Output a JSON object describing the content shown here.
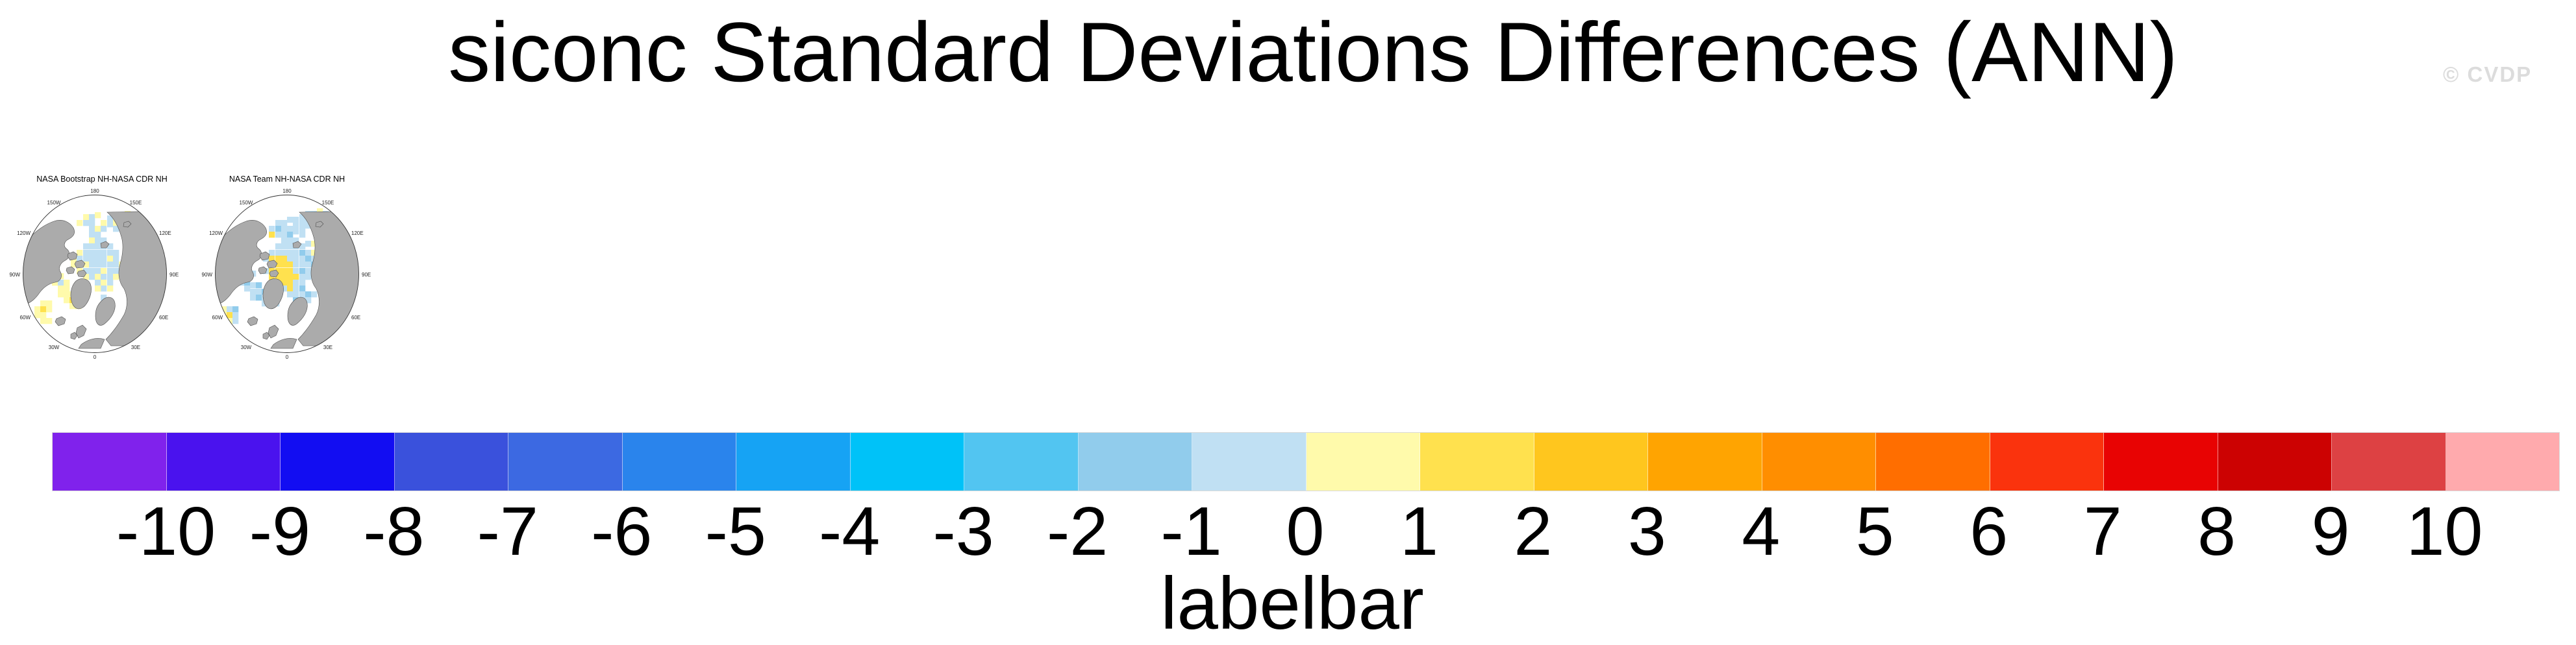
{
  "figure": {
    "title": "siconc Standard Deviations Differences (ANN)",
    "watermark": "© CVDP",
    "background": "#ffffff"
  },
  "panels": [
    {
      "title": "NASA Bootstrap NH-NASA CDR NH",
      "cells": [
        [
          123,
          45,
          11
        ],
        [
          132,
          45,
          10
        ],
        [
          141,
          42,
          11
        ],
        [
          160,
          47,
          10
        ],
        [
          169,
          45,
          11
        ],
        [
          178,
          42,
          10
        ],
        [
          187,
          40,
          11
        ],
        [
          113,
          54,
          11
        ],
        [
          123,
          54,
          10
        ],
        [
          132,
          54,
          10
        ],
        [
          150,
          54,
          11
        ],
        [
          160,
          56,
          10
        ],
        [
          169,
          54,
          11
        ],
        [
          187,
          49,
          10
        ],
        [
          196,
          45,
          11
        ],
        [
          132,
          63,
          10
        ],
        [
          141,
          63,
          11
        ],
        [
          150,
          63,
          10
        ],
        [
          169,
          63,
          10
        ],
        [
          178,
          60,
          11
        ],
        [
          187,
          58,
          11
        ],
        [
          196,
          58,
          10
        ],
        [
          196,
          67,
          11
        ],
        [
          132,
          72,
          10
        ],
        [
          141,
          72,
          10
        ],
        [
          132,
          81,
          11
        ],
        [
          141,
          81,
          10
        ],
        [
          150,
          81,
          10
        ],
        [
          123,
          90,
          10
        ],
        [
          132,
          90,
          10
        ],
        [
          141,
          90,
          10
        ],
        [
          150,
          90,
          10
        ],
        [
          160,
          90,
          10
        ],
        [
          113,
          100,
          11
        ],
        [
          123,
          100,
          10
        ],
        [
          132,
          100,
          10
        ],
        [
          141,
          100,
          10
        ],
        [
          150,
          100,
          10
        ],
        [
          160,
          100,
          10
        ],
        [
          169,
          100,
          10
        ],
        [
          104,
          109,
          11
        ],
        [
          113,
          109,
          10
        ],
        [
          123,
          109,
          10
        ],
        [
          132,
          109,
          10
        ],
        [
          141,
          109,
          10
        ],
        [
          150,
          109,
          10
        ],
        [
          160,
          109,
          11
        ],
        [
          169,
          109,
          10
        ],
        [
          104,
          118,
          11
        ],
        [
          113,
          118,
          10
        ],
        [
          123,
          118,
          11
        ],
        [
          132,
          118,
          10
        ],
        [
          141,
          118,
          10
        ],
        [
          150,
          118,
          10
        ],
        [
          160,
          118,
          10
        ],
        [
          169,
          118,
          10
        ],
        [
          178,
          118,
          11
        ],
        [
          113,
          128,
          11
        ],
        [
          123,
          128,
          10
        ],
        [
          132,
          128,
          10
        ],
        [
          141,
          128,
          10
        ],
        [
          150,
          128,
          11
        ],
        [
          160,
          128,
          10
        ],
        [
          169,
          128,
          10
        ],
        [
          123,
          137,
          11
        ],
        [
          132,
          137,
          10
        ],
        [
          141,
          137,
          11
        ],
        [
          150,
          137,
          10
        ],
        [
          160,
          137,
          10
        ],
        [
          169,
          137,
          11
        ],
        [
          141,
          146,
          10
        ],
        [
          150,
          146,
          11
        ],
        [
          160,
          146,
          10
        ],
        [
          150,
          155,
          10
        ],
        [
          160,
          155,
          11
        ],
        [
          141,
          155,
          11
        ],
        [
          150,
          169,
          10
        ],
        [
          66,
          127,
          11
        ],
        [
          75,
          127,
          11
        ],
        [
          66,
          136,
          11
        ],
        [
          75,
          136,
          12
        ],
        [
          84,
          136,
          11
        ],
        [
          75,
          146,
          11
        ],
        [
          84,
          146,
          10
        ],
        [
          93,
          146,
          11
        ],
        [
          84,
          155,
          11
        ],
        [
          93,
          155,
          11
        ],
        [
          84,
          164,
          11
        ],
        [
          93,
          164,
          11
        ],
        [
          102,
          164,
          11
        ],
        [
          93,
          173,
          11
        ],
        [
          102,
          173,
          12
        ],
        [
          102,
          182,
          11
        ],
        [
          111,
          182,
          11
        ],
        [
          57,
          178,
          11
        ],
        [
          66,
          178,
          11
        ],
        [
          48,
          187,
          11
        ],
        [
          57,
          187,
          12
        ],
        [
          66,
          187,
          11
        ],
        [
          48,
          196,
          11
        ],
        [
          57,
          196,
          11
        ],
        [
          57,
          205,
          11
        ],
        [
          66,
          205,
          11
        ]
      ]
    },
    {
      "title": "NASA Team NH-NASA CDR NH",
      "cells": [
        [
          113,
          63,
          10
        ],
        [
          123,
          54,
          10
        ],
        [
          132,
          54,
          10
        ],
        [
          141,
          49,
          10
        ],
        [
          150,
          49,
          10
        ],
        [
          160,
          45,
          10
        ],
        [
          169,
          40,
          10
        ],
        [
          178,
          40,
          10
        ],
        [
          187,
          36,
          11
        ],
        [
          196,
          40,
          10
        ],
        [
          123,
          63,
          9
        ],
        [
          132,
          63,
          10
        ],
        [
          141,
          63,
          10
        ],
        [
          150,
          58,
          10
        ],
        [
          160,
          54,
          10
        ],
        [
          169,
          49,
          10
        ],
        [
          178,
          49,
          10
        ],
        [
          187,
          45,
          12
        ],
        [
          196,
          49,
          12
        ],
        [
          113,
          72,
          12
        ],
        [
          123,
          72,
          10
        ],
        [
          132,
          72,
          10
        ],
        [
          141,
          72,
          9
        ],
        [
          150,
          67,
          10
        ],
        [
          160,
          63,
          10
        ],
        [
          169,
          58,
          10
        ],
        [
          132,
          81,
          10
        ],
        [
          141,
          81,
          10
        ],
        [
          150,
          81,
          10
        ],
        [
          160,
          72,
          10
        ],
        [
          123,
          90,
          10
        ],
        [
          132,
          90,
          10
        ],
        [
          141,
          90,
          10
        ],
        [
          150,
          90,
          10
        ],
        [
          160,
          90,
          10
        ],
        [
          169,
          86,
          10
        ],
        [
          178,
          86,
          11
        ],
        [
          113,
          100,
          10
        ],
        [
          123,
          100,
          10
        ],
        [
          132,
          100,
          10
        ],
        [
          141,
          100,
          10
        ],
        [
          150,
          100,
          10
        ],
        [
          160,
          100,
          9
        ],
        [
          169,
          100,
          10
        ],
        [
          178,
          100,
          11
        ],
        [
          187,
          100,
          10
        ],
        [
          104,
          109,
          10
        ],
        [
          113,
          109,
          12
        ],
        [
          123,
          109,
          12
        ],
        [
          132,
          109,
          12
        ],
        [
          141,
          109,
          10
        ],
        [
          150,
          109,
          10
        ],
        [
          160,
          109,
          10
        ],
        [
          169,
          109,
          9
        ],
        [
          178,
          109,
          10
        ],
        [
          113,
          118,
          12
        ],
        [
          123,
          118,
          12
        ],
        [
          132,
          118,
          12
        ],
        [
          141,
          118,
          12
        ],
        [
          150,
          118,
          10
        ],
        [
          160,
          118,
          10
        ],
        [
          169,
          118,
          10
        ],
        [
          178,
          118,
          9
        ],
        [
          187,
          118,
          10
        ],
        [
          104,
          128,
          10
        ],
        [
          113,
          128,
          12
        ],
        [
          123,
          128,
          12
        ],
        [
          132,
          128,
          12
        ],
        [
          141,
          128,
          12
        ],
        [
          150,
          128,
          10
        ],
        [
          160,
          128,
          9
        ],
        [
          169,
          128,
          10
        ],
        [
          178,
          128,
          10
        ],
        [
          187,
          128,
          11
        ],
        [
          113,
          137,
          12
        ],
        [
          123,
          137,
          12
        ],
        [
          132,
          137,
          12
        ],
        [
          141,
          137,
          12
        ],
        [
          150,
          137,
          12
        ],
        [
          160,
          137,
          10
        ],
        [
          169,
          137,
          10
        ],
        [
          123,
          146,
          12
        ],
        [
          132,
          146,
          12
        ],
        [
          141,
          146,
          12
        ],
        [
          150,
          146,
          10
        ],
        [
          160,
          146,
          10
        ],
        [
          132,
          155,
          10
        ],
        [
          141,
          155,
          12
        ],
        [
          150,
          155,
          10
        ],
        [
          160,
          155,
          9
        ],
        [
          155,
          182,
          11
        ],
        [
          141,
          164,
          10
        ],
        [
          150,
          164,
          10
        ],
        [
          160,
          164,
          10
        ],
        [
          169,
          164,
          9
        ],
        [
          178,
          164,
          10
        ],
        [
          150,
          173,
          9
        ],
        [
          160,
          173,
          10
        ],
        [
          169,
          173,
          10
        ],
        [
          66,
          136,
          11
        ],
        [
          75,
          132,
          10
        ],
        [
          84,
          132,
          10
        ],
        [
          57,
          146,
          10
        ],
        [
          66,
          146,
          10
        ],
        [
          75,
          146,
          9
        ],
        [
          84,
          150,
          10
        ],
        [
          93,
          150,
          9
        ],
        [
          75,
          155,
          10
        ],
        [
          84,
          160,
          10
        ],
        [
          93,
          160,
          10
        ],
        [
          102,
          160,
          9
        ],
        [
          84,
          169,
          10
        ],
        [
          93,
          169,
          9
        ],
        [
          102,
          169,
          10
        ],
        [
          111,
          169,
          10
        ],
        [
          102,
          178,
          10
        ],
        [
          111,
          178,
          9
        ],
        [
          120,
          178,
          10
        ],
        [
          40,
          187,
          11
        ],
        [
          48,
          187,
          10
        ],
        [
          57,
          187,
          9
        ],
        [
          40,
          196,
          11
        ],
        [
          48,
          196,
          12
        ],
        [
          57,
          196,
          10
        ],
        [
          48,
          205,
          11
        ],
        [
          57,
          205,
          10
        ]
      ]
    }
  ],
  "map": {
    "meridian_labels": [
      "180",
      "150W",
      "150E",
      "120W",
      "120E",
      "90W",
      "90E",
      "60W",
      "60E",
      "30W",
      "30E",
      "0"
    ],
    "land_color": "#ababab",
    "coast_color": "#4f4f4f",
    "ocean_color": "#ffffff",
    "outline_color": "#333333"
  },
  "labelbar": {
    "caption": "labelbar",
    "tick_labels": [
      "-10",
      "-9",
      "-8",
      "-7",
      "-6",
      "-5",
      "-4",
      "-3",
      "-2",
      "-1",
      "0",
      "1",
      "2",
      "3",
      "4",
      "5",
      "6",
      "7",
      "8",
      "9",
      "10"
    ],
    "colors": [
      "#8022ec",
      "#4a12ee",
      "#120df2",
      "#3a51dc",
      "#3c69e2",
      "#2a84ec",
      "#16a3f4",
      "#00c2f8",
      "#52c5f1",
      "#91ccec",
      "#c0e0f3",
      "#fffaab",
      "#ffe14e",
      "#ffc61e",
      "#ffa401",
      "#ff8e00",
      "#ff6e00",
      "#fa330d",
      "#e80303",
      "#cc0202",
      "#dd4143",
      "#ffaaad"
    ],
    "border_color": "#d9d9d9"
  },
  "chart_data": {
    "type": "heatmap",
    "title": "siconc Standard Deviations Differences (ANN)",
    "panels": [
      "NASA Bootstrap NH-NASA CDR NH",
      "NASA Team NH-NASA CDR NH"
    ],
    "projection": "north-polar-stereographic",
    "colorbar_label": "labelbar",
    "levels": [
      -10,
      -9,
      -8,
      -7,
      -6,
      -5,
      -4,
      -3,
      -2,
      -1,
      0,
      1,
      2,
      3,
      4,
      5,
      6,
      7,
      8,
      9,
      10
    ],
    "colors": [
      "#8022ec",
      "#4a12ee",
      "#120df2",
      "#3a51dc",
      "#3c69e2",
      "#2a84ec",
      "#16a3f4",
      "#00c2f8",
      "#52c5f1",
      "#91ccec",
      "#c0e0f3",
      "#fffaab",
      "#ffe14e",
      "#ffc61e",
      "#ffa401",
      "#ff8e00",
      "#ff6e00",
      "#fa330d",
      "#e80303",
      "#cc0202",
      "#dd4143",
      "#ffaaad"
    ],
    "value_note": "Visible sea-ice std-dev differences fall mostly in the -3 to +2 bins (light blues and yellows) over the Arctic Ocean"
  }
}
